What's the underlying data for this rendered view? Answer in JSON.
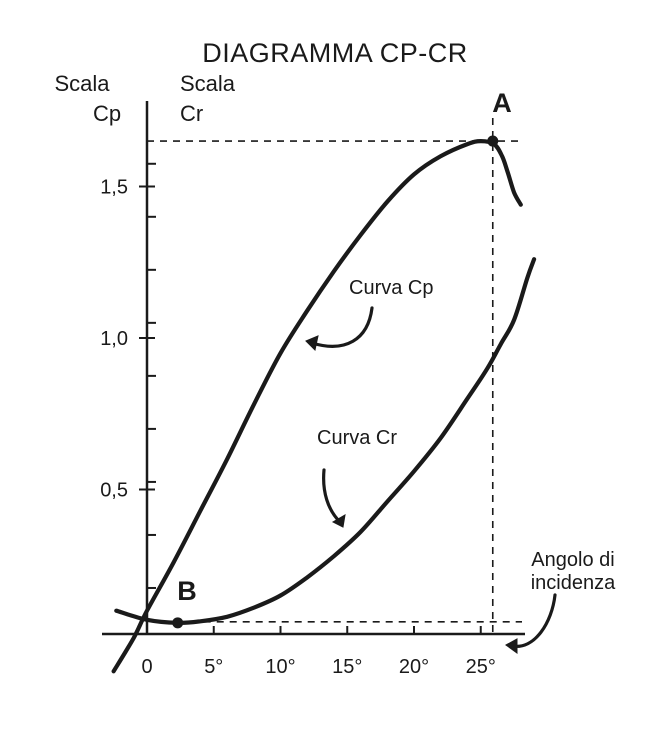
{
  "chart_data": {
    "type": "line",
    "title": "DIAGRAMMA CP-CR",
    "y_scale_label": [
      "Scala",
      "Cp"
    ],
    "y2_scale_label": [
      "Scala",
      "Cr"
    ],
    "x_axis_note": [
      "Angolo di",
      "incidenza"
    ],
    "x_ticks": [
      {
        "value": 0,
        "label": "0"
      },
      {
        "value": 5,
        "label": "5°"
      },
      {
        "value": 10,
        "label": "10°"
      },
      {
        "value": 15,
        "label": "15°"
      },
      {
        "value": 20,
        "label": "20°"
      },
      {
        "value": 25,
        "label": "25°"
      }
    ],
    "y_ticks": [
      {
        "value": 0.5,
        "label": "0,5"
      },
      {
        "value": 1.0,
        "label": "1,0"
      },
      {
        "value": 1.5,
        "label": "1,5"
      }
    ],
    "xlim": [
      -2,
      29
    ],
    "ylim": [
      -0.1,
      1.73
    ],
    "series": [
      {
        "name": "Curva Cp",
        "x": [
          -2.5,
          -1,
          0,
          2,
          4,
          6,
          8,
          10,
          12,
          14,
          16,
          18,
          20,
          22,
          24,
          25,
          26,
          26.6,
          27,
          27.5,
          28
        ],
        "y": [
          -0.1,
          0.01,
          0.1,
          0.26,
          0.43,
          0.6,
          0.78,
          0.95,
          1.09,
          1.22,
          1.34,
          1.45,
          1.54,
          1.6,
          1.64,
          1.65,
          1.64,
          1.6,
          1.55,
          1.48,
          1.44
        ]
      },
      {
        "name": "Curva Cr",
        "x": [
          -2.3,
          0,
          2.3,
          4,
          6,
          8,
          10,
          12,
          14,
          16,
          18,
          20,
          22,
          24,
          25.5,
          26.5,
          27.5,
          28.5,
          29
        ],
        "y": [
          0.1,
          0.07,
          0.06,
          0.065,
          0.08,
          0.11,
          0.15,
          0.21,
          0.28,
          0.36,
          0.46,
          0.56,
          0.67,
          0.8,
          0.9,
          0.98,
          1.06,
          1.2,
          1.26
        ]
      }
    ],
    "points": [
      {
        "label": "A",
        "x": 25.9,
        "y": 1.65
      },
      {
        "label": "B",
        "x": 2.3,
        "y": 0.06
      }
    ],
    "curve_labels": [
      "Curva Cp",
      "Curva Cr"
    ],
    "dashed_guides": true,
    "grid": false,
    "legend": "none"
  }
}
